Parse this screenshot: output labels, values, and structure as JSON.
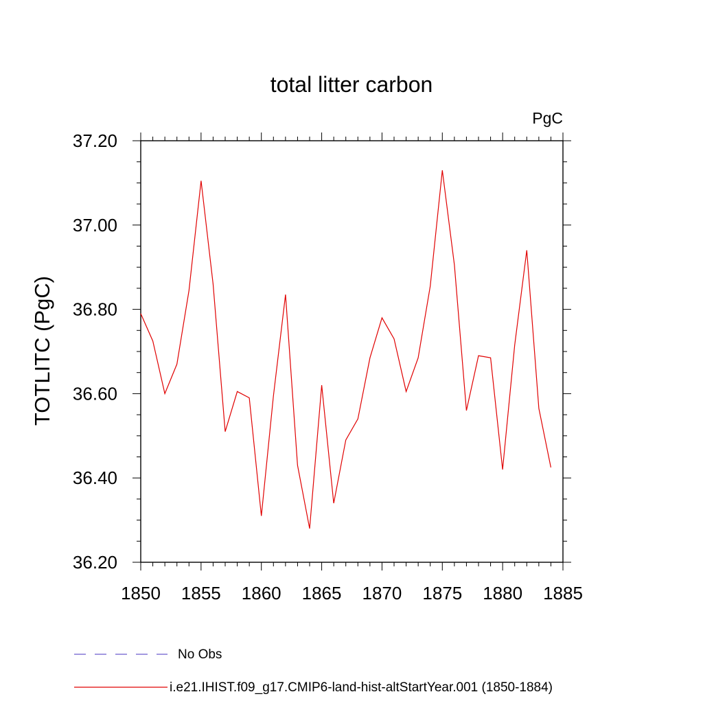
{
  "chart_data": {
    "type": "line",
    "title": "total litter carbon",
    "units_label": "PgC",
    "ylabel": "TOTLITC  (PgC)",
    "xlabel": "",
    "xlim": [
      1850,
      1885
    ],
    "ylim": [
      36.2,
      37.2
    ],
    "x_ticks": [
      "1850",
      "1855",
      "1860",
      "1865",
      "1870",
      "1875",
      "1880",
      "1885"
    ],
    "y_ticks": [
      "36.20",
      "36.40",
      "36.60",
      "36.80",
      "37.00",
      "37.20"
    ],
    "grid": false,
    "legend_position": "bottom",
    "legend": [
      {
        "label": "No Obs",
        "style": "dashed",
        "color": "#6a5acd"
      },
      {
        "label": "i.e21.IHIST.f09_g17.CMIP6-land-hist-altStartYear.001 (1850-1884)",
        "style": "solid",
        "color": "#e00000"
      }
    ],
    "series": [
      {
        "name": "i.e21.IHIST.f09_g17.CMIP6-land-hist-altStartYear.001 (1850-1884)",
        "color": "#e00000",
        "x": [
          1850,
          1851,
          1852,
          1853,
          1854,
          1855,
          1856,
          1857,
          1858,
          1859,
          1860,
          1861,
          1862,
          1863,
          1864,
          1865,
          1866,
          1867,
          1868,
          1869,
          1870,
          1871,
          1872,
          1873,
          1874,
          1875,
          1876,
          1877,
          1878,
          1879,
          1880,
          1881,
          1882,
          1883,
          1884
        ],
        "values": [
          36.79,
          36.725,
          36.6,
          36.67,
          36.845,
          37.105,
          36.86,
          36.51,
          36.605,
          36.59,
          36.31,
          36.595,
          36.835,
          36.43,
          36.28,
          36.62,
          36.34,
          36.49,
          36.54,
          36.685,
          36.78,
          36.73,
          36.605,
          36.685,
          36.855,
          37.13,
          36.905,
          36.56,
          36.69,
          36.685,
          36.42,
          36.715,
          36.94,
          36.565,
          36.425
        ]
      }
    ]
  }
}
